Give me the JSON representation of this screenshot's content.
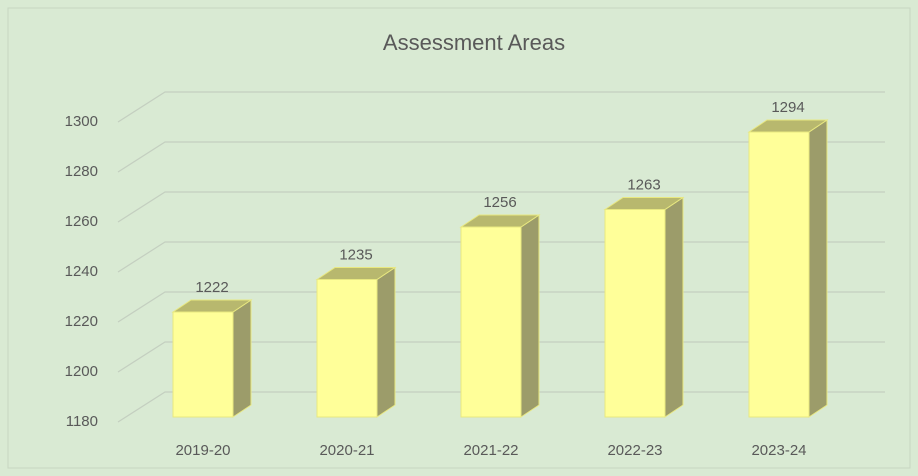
{
  "chart_data": {
    "type": "bar3d",
    "title": "Assessment Areas",
    "categories": [
      "2019-20",
      "2020-21",
      "2021-22",
      "2022-23",
      "2023-24"
    ],
    "values": [
      1222,
      1235,
      1256,
      1263,
      1294
    ],
    "color": "#ffff99",
    "ylim": [
      1180,
      1300
    ],
    "yticks": [
      1180,
      1200,
      1220,
      1240,
      1260,
      1280,
      1300
    ],
    "grid": true
  }
}
